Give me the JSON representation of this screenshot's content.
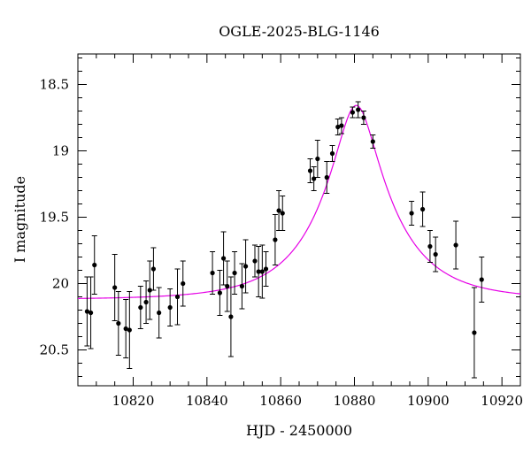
{
  "chart_data": {
    "type": "scatter",
    "title": "OGLE-2025-BLG-1146",
    "xlabel": "HJD - 2450000",
    "ylabel": "I magnitude",
    "xlim": [
      10805,
      10925
    ],
    "ylim": [
      20.77,
      18.27
    ],
    "y_inverted": true,
    "xticks": [
      10820,
      10840,
      10860,
      10880,
      10900,
      10920
    ],
    "xtick_labels": [
      "10820",
      "10840",
      "10860",
      "10880",
      "10900",
      "10920"
    ],
    "yticks": [
      18.5,
      19,
      19.5,
      20,
      20.5
    ],
    "ytick_labels": [
      "18.5",
      "19",
      "19.5",
      "20",
      "20.5"
    ],
    "grid": false,
    "colors": {
      "points": "#000000",
      "error_bars": "#000000",
      "model": "#e600e6"
    },
    "series": [
      {
        "kind": "data_with_errors",
        "x": [
          10807.5,
          10808.5,
          10809.5,
          10815.0,
          10816.0,
          10818.0,
          10819.0,
          10822.0,
          10823.5,
          10824.5,
          10825.5,
          10827.0,
          10830.0,
          10832.0,
          10833.5,
          10841.5,
          10843.5,
          10844.5,
          10845.5,
          10846.5,
          10847.5,
          10849.5,
          10850.5,
          10853.0,
          10854.0,
          10855.0,
          10856.0,
          10858.5,
          10859.5,
          10860.5,
          10868.0,
          10869.0,
          10870.0,
          10872.5,
          10874.0,
          10875.5,
          10876.5,
          10879.5,
          10881.0,
          10882.5,
          10885.0,
          10895.5,
          10898.5,
          10900.5,
          10902.0,
          10907.5,
          10912.5,
          10914.5
        ],
        "y": [
          20.21,
          20.22,
          19.86,
          20.03,
          20.3,
          20.34,
          20.35,
          20.18,
          20.14,
          20.05,
          19.89,
          20.22,
          20.18,
          20.1,
          20.0,
          19.92,
          20.07,
          19.81,
          20.02,
          20.25,
          19.92,
          20.02,
          19.87,
          19.83,
          19.91,
          19.91,
          19.89,
          19.67,
          19.45,
          19.47,
          19.15,
          19.21,
          19.06,
          19.2,
          19.02,
          18.82,
          18.81,
          18.71,
          18.69,
          18.75,
          18.93,
          19.47,
          19.44,
          19.72,
          19.78,
          19.71,
          20.37,
          19.97
        ],
        "err": [
          0.26,
          0.27,
          0.22,
          0.25,
          0.24,
          0.22,
          0.29,
          0.16,
          0.16,
          0.22,
          0.16,
          0.19,
          0.14,
          0.21,
          0.17,
          0.16,
          0.17,
          0.2,
          0.19,
          0.3,
          0.16,
          0.17,
          0.2,
          0.12,
          0.19,
          0.2,
          0.13,
          0.19,
          0.15,
          0.13,
          0.09,
          0.09,
          0.14,
          0.12,
          0.06,
          0.06,
          0.06,
          0.04,
          0.06,
          0.05,
          0.05,
          0.09,
          0.13,
          0.12,
          0.13,
          0.18,
          0.34,
          0.17
        ]
      },
      {
        "kind": "model_curve",
        "model": "PSPL",
        "t0": 10880.5,
        "u0": 0.267,
        "tE": 19.5,
        "baseline_mag": 20.12
      }
    ]
  }
}
